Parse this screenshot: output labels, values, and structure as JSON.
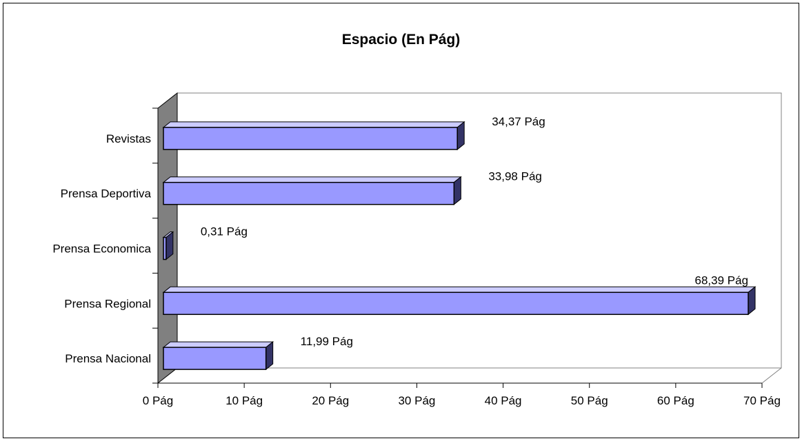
{
  "chart_data": {
    "type": "bar",
    "orientation": "horizontal",
    "style": "3d",
    "title": "Espacio (En Pág)",
    "categories": [
      "Revistas",
      "Prensa Deportiva",
      "Prensa Economica",
      "Prensa Regional",
      "Prensa Nacional"
    ],
    "values": [
      34.37,
      33.98,
      0.31,
      68.39,
      11.99
    ],
    "data_labels": [
      "34,37 Pág",
      "33,98 Pág",
      "0,31 Pág",
      "68,39 Pág",
      "11,99 Pág"
    ],
    "x_ticks": [
      "0 Pág",
      "10 Pág",
      "20 Pág",
      "30 Pág",
      "40 Pág",
      "50 Pág",
      "60 Pág",
      "70 Pág"
    ],
    "xlim": [
      0,
      70
    ],
    "grid": false,
    "legend": "none",
    "colors": {
      "bar_front": "#9999ff",
      "bar_top": "#ccccff",
      "bar_side": "#333366",
      "wall_side": "#808080",
      "outline": "#000000"
    }
  }
}
